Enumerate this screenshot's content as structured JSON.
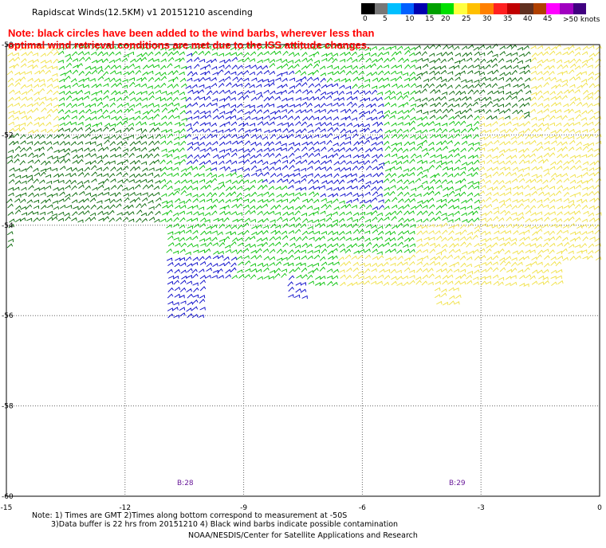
{
  "title": "Rapidscat Winds(12.5KM) v1 20151210 ascending",
  "note": {
    "line1": "Note: black circles have been added to the wind barbs, wherever less than",
    "line2": "optimal wind retrieval conditions are met due to the ISS attitude changes."
  },
  "legend": {
    "units": ">50 knots",
    "labels": [
      "0",
      "5",
      "10",
      "15",
      "20",
      "25",
      "30",
      "35",
      "40",
      "45"
    ],
    "colors": [
      "#000000",
      "#777777",
      "#00bfff",
      "#0060ff",
      "#0000b0",
      "#00a000",
      "#00e000",
      "#ffff40",
      "#ffc000",
      "#ff8000",
      "#ff2020",
      "#c00000",
      "#603020",
      "#b04000",
      "#ff00ff",
      "#a000c0",
      "#400080"
    ]
  },
  "axes": {
    "lat_ticks": [
      "-50",
      "-52",
      "-54",
      "-56",
      "-58",
      "-60"
    ],
    "lon_ticks": [
      "-15",
      "-12",
      "-9",
      "-6",
      "-3",
      "0"
    ]
  },
  "pass_labels": [
    "B:28",
    "B:29"
  ],
  "footer": {
    "line1": "Note: 1) Times are GMT 2)Times along bottom correspond to measurement at -50S",
    "line2": "3)Data buffer is 22 hrs from 20151210 4) Black wind barbs indicate possible contamination",
    "line3": "NOAA/NESDIS/Center for Satellite Applications and Research"
  },
  "wind_colors": {
    "blue": "#0000c8",
    "green": "#00c000",
    "dark_green": "#006400",
    "yellow": "#f0e040"
  }
}
